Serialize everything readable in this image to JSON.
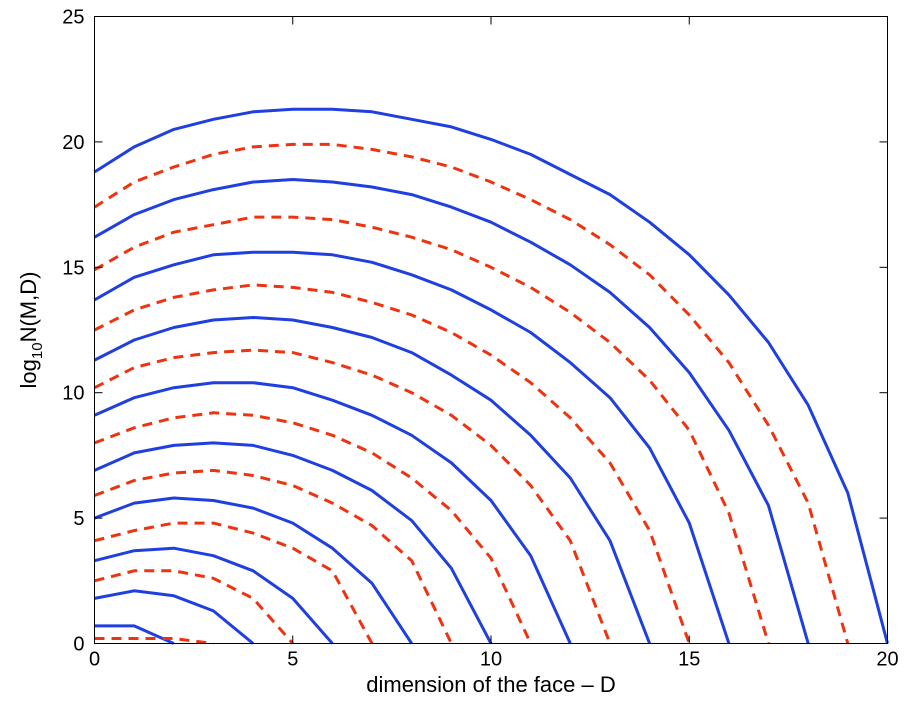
{
  "chart_data": {
    "type": "line",
    "xlabel": "dimension of the face – D",
    "ylabel": {
      "base": "log",
      "sub": "10",
      "rest": "N(M,D)"
    },
    "xlim": [
      0,
      20
    ],
    "ylim": [
      0,
      25
    ],
    "xticks": [
      "0",
      "5",
      "10",
      "15",
      "20"
    ],
    "yticks": [
      "0",
      "5",
      "10",
      "15",
      "20",
      "25"
    ],
    "grid": false,
    "legend": "none",
    "colors": {
      "solid": "#1f3fe0",
      "dashed": "#ee3311"
    },
    "series": [
      {
        "style": "solid",
        "x": [
          0,
          1,
          2
        ],
        "y": [
          0.7,
          0.7,
          0.0
        ]
      },
      {
        "style": "dashed",
        "x": [
          0,
          1,
          2,
          3
        ],
        "y": [
          0.2,
          0.2,
          0.2,
          0.0
        ]
      },
      {
        "style": "solid",
        "x": [
          0,
          1,
          2,
          3,
          4
        ],
        "y": [
          1.8,
          2.1,
          1.9,
          1.3,
          0.0
        ]
      },
      {
        "style": "dashed",
        "x": [
          0,
          1,
          2,
          3,
          4,
          5
        ],
        "y": [
          2.5,
          2.9,
          2.9,
          2.6,
          1.8,
          0.0
        ]
      },
      {
        "style": "solid",
        "x": [
          0,
          1,
          2,
          3,
          4,
          5,
          6
        ],
        "y": [
          3.3,
          3.7,
          3.8,
          3.5,
          2.9,
          1.8,
          0.0
        ]
      },
      {
        "style": "dashed",
        "x": [
          0,
          1,
          2,
          3,
          4,
          5,
          6,
          7
        ],
        "y": [
          4.1,
          4.5,
          4.8,
          4.8,
          4.4,
          3.8,
          2.9,
          0.0
        ]
      },
      {
        "style": "solid",
        "x": [
          0,
          1,
          2,
          3,
          4,
          5,
          6,
          7,
          8
        ],
        "y": [
          5.0,
          5.6,
          5.8,
          5.7,
          5.4,
          4.8,
          3.8,
          2.4,
          0.0
        ]
      },
      {
        "style": "dashed",
        "x": [
          0,
          1,
          2,
          3,
          4,
          5,
          6,
          7,
          8,
          9
        ],
        "y": [
          5.9,
          6.5,
          6.8,
          6.9,
          6.7,
          6.3,
          5.6,
          4.7,
          3.3,
          0.0
        ]
      },
      {
        "style": "solid",
        "x": [
          0,
          1,
          2,
          3,
          4,
          5,
          6,
          7,
          8,
          9,
          10
        ],
        "y": [
          6.9,
          7.6,
          7.9,
          8.0,
          7.9,
          7.5,
          6.9,
          6.1,
          4.9,
          3.0,
          0.0
        ]
      },
      {
        "style": "dashed",
        "x": [
          0,
          1,
          2,
          3,
          4,
          5,
          6,
          7,
          8,
          9,
          10,
          11
        ],
        "y": [
          8.0,
          8.6,
          9.0,
          9.2,
          9.1,
          8.8,
          8.3,
          7.6,
          6.6,
          5.3,
          3.4,
          0.0
        ]
      },
      {
        "style": "solid",
        "x": [
          0,
          1,
          2,
          3,
          4,
          5,
          6,
          7,
          8,
          9,
          10,
          11,
          12
        ],
        "y": [
          9.1,
          9.8,
          10.2,
          10.4,
          10.4,
          10.2,
          9.7,
          9.1,
          8.3,
          7.2,
          5.7,
          3.5,
          0.0
        ]
      },
      {
        "style": "dashed",
        "x": [
          0,
          1,
          2,
          3,
          4,
          5,
          6,
          7,
          8,
          9,
          10,
          11,
          12,
          13
        ],
        "y": [
          10.2,
          11.0,
          11.4,
          11.6,
          11.7,
          11.6,
          11.2,
          10.7,
          10.0,
          9.1,
          7.9,
          6.3,
          4.1,
          0.0
        ]
      },
      {
        "style": "solid",
        "x": [
          0,
          1,
          2,
          3,
          4,
          5,
          6,
          7,
          8,
          9,
          10,
          11,
          12,
          13,
          14
        ],
        "y": [
          11.3,
          12.1,
          12.6,
          12.9,
          13.0,
          12.9,
          12.6,
          12.2,
          11.6,
          10.7,
          9.7,
          8.3,
          6.6,
          4.1,
          0.0
        ]
      },
      {
        "style": "dashed",
        "x": [
          0,
          1,
          2,
          3,
          4,
          5,
          6,
          7,
          8,
          9,
          10,
          11,
          12,
          13,
          14,
          15
        ],
        "y": [
          12.5,
          13.3,
          13.8,
          14.1,
          14.3,
          14.2,
          14.0,
          13.6,
          13.1,
          12.4,
          11.5,
          10.4,
          9.0,
          7.2,
          4.5,
          0.0
        ]
      },
      {
        "style": "solid",
        "x": [
          0,
          1,
          2,
          3,
          4,
          5,
          6,
          7,
          8,
          9,
          10,
          11,
          12,
          13,
          14,
          15,
          16
        ],
        "y": [
          13.7,
          14.6,
          15.1,
          15.5,
          15.6,
          15.6,
          15.5,
          15.2,
          14.7,
          14.1,
          13.3,
          12.4,
          11.2,
          9.8,
          7.8,
          4.8,
          0.0
        ]
      },
      {
        "style": "dashed",
        "x": [
          0,
          1,
          2,
          3,
          4,
          5,
          6,
          7,
          8,
          9,
          10,
          11,
          12,
          13,
          14,
          15,
          16,
          17
        ],
        "y": [
          14.9,
          15.8,
          16.4,
          16.7,
          17.0,
          17.0,
          16.9,
          16.6,
          16.2,
          15.7,
          15.0,
          14.2,
          13.2,
          12.0,
          10.5,
          8.5,
          5.2,
          0.0
        ]
      },
      {
        "style": "solid",
        "x": [
          0,
          1,
          2,
          3,
          4,
          5,
          6,
          7,
          8,
          9,
          10,
          11,
          12,
          13,
          14,
          15,
          16,
          17,
          18
        ],
        "y": [
          16.2,
          17.1,
          17.7,
          18.1,
          18.4,
          18.5,
          18.4,
          18.2,
          17.9,
          17.4,
          16.8,
          16.0,
          15.1,
          14.0,
          12.6,
          10.8,
          8.5,
          5.5,
          0.0
        ]
      },
      {
        "style": "dashed",
        "x": [
          0,
          1,
          2,
          3,
          4,
          5,
          6,
          7,
          8,
          9,
          10,
          11,
          12,
          13,
          14,
          15,
          16,
          17,
          18,
          19
        ],
        "y": [
          17.4,
          18.4,
          19.0,
          19.5,
          19.8,
          19.9,
          19.9,
          19.7,
          19.4,
          19.0,
          18.4,
          17.7,
          16.9,
          15.9,
          14.7,
          13.1,
          11.2,
          8.7,
          5.6,
          0.0
        ]
      },
      {
        "style": "solid",
        "x": [
          0,
          1,
          2,
          3,
          4,
          5,
          6,
          7,
          8,
          9,
          10,
          11,
          12,
          13,
          14,
          15,
          16,
          17,
          18,
          19,
          20
        ],
        "y": [
          18.8,
          19.8,
          20.5,
          20.9,
          21.2,
          21.3,
          21.3,
          21.2,
          20.9,
          20.6,
          20.1,
          19.5,
          18.7,
          17.9,
          16.8,
          15.5,
          13.9,
          12.0,
          9.5,
          6.0,
          0.0
        ]
      }
    ]
  }
}
